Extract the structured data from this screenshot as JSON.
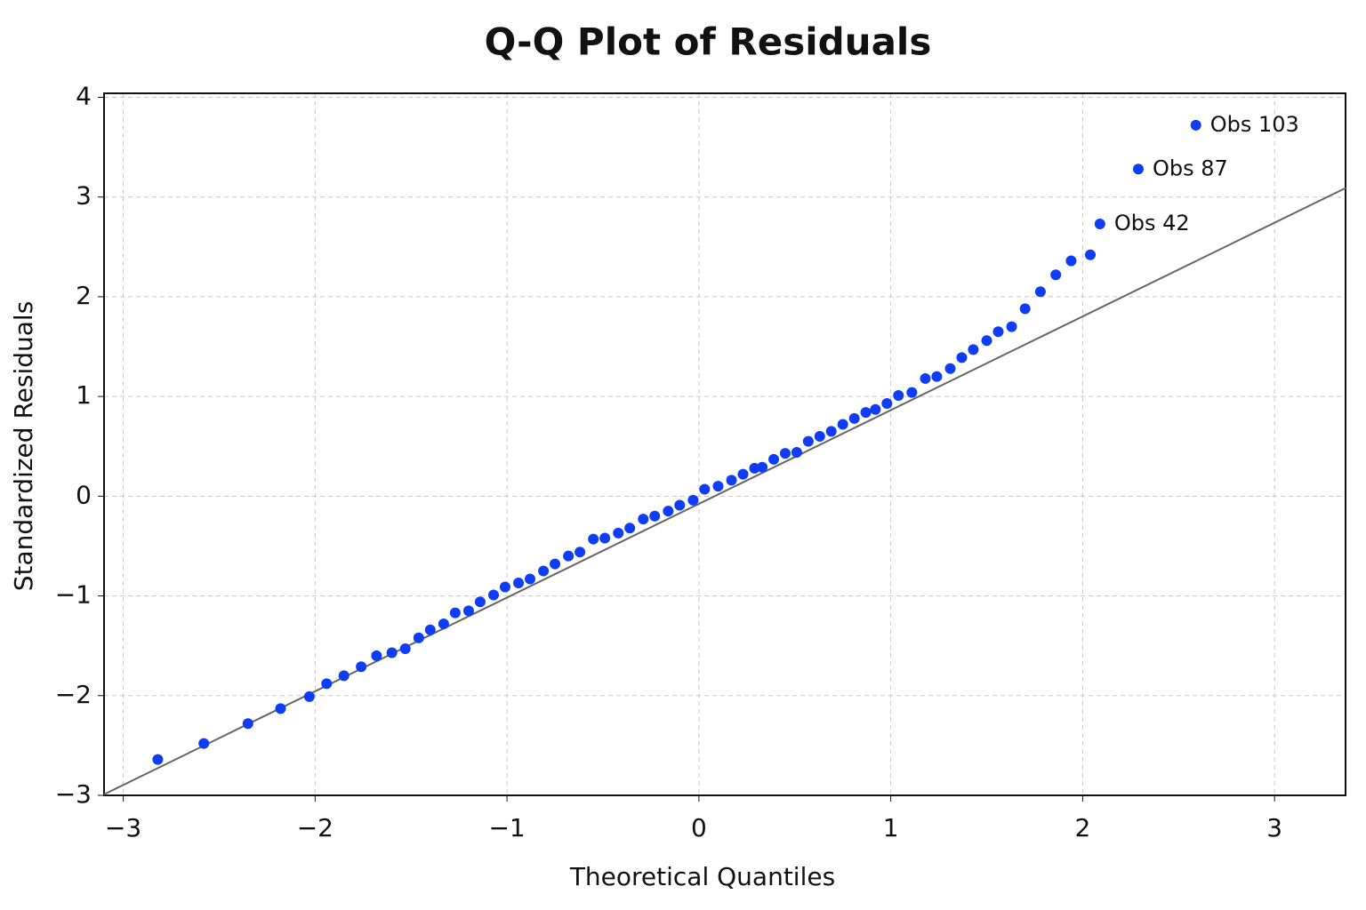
{
  "chart_data": {
    "type": "scatter",
    "title": "Q-Q Plot of Residuals",
    "x_label": "Theoretical Quantiles",
    "y_label": "Standardized Residuals",
    "color": "#0f3cf5",
    "grid": true,
    "xlim": [
      -3.1,
      3.37
    ],
    "ylim": [
      -3,
      4.04
    ],
    "xticks": [
      {
        "value": -3,
        "label": "−3"
      },
      {
        "value": -2,
        "label": "−2"
      },
      {
        "value": -1,
        "label": "−1"
      },
      0,
      1,
      2,
      3
    ],
    "yticks": [
      {
        "value": -3,
        "label": "−3"
      },
      {
        "value": -2,
        "label": "−2"
      },
      {
        "value": -1,
        "label": "−1"
      },
      0,
      1,
      2,
      3,
      4
    ],
    "x": [
      -2.82,
      -2.58,
      -2.35,
      -2.18,
      -2.03,
      -1.94,
      -1.85,
      -1.76,
      -1.68,
      -1.6,
      -1.53,
      -1.46,
      -1.4,
      -1.33,
      -1.27,
      -1.2,
      -1.14,
      -1.07,
      -1.01,
      -0.94,
      -0.88,
      -0.81,
      -0.75,
      -0.68,
      -0.62,
      -0.55,
      -0.49,
      -0.42,
      -0.36,
      -0.29,
      -0.23,
      -0.16,
      -0.1,
      -0.03,
      0.03,
      0.1,
      0.17,
      0.23,
      0.29,
      0.33,
      0.39,
      0.45,
      0.51,
      0.57,
      0.63,
      0.69,
      0.75,
      0.81,
      0.87,
      0.92,
      0.98,
      1.04,
      1.11,
      1.18,
      1.24,
      1.31,
      1.37,
      1.43,
      1.5,
      1.56,
      1.63,
      1.7,
      1.78,
      1.86,
      1.94,
      2.04,
      2.09,
      2.29,
      2.59
    ],
    "values": [
      -2.64,
      -2.48,
      -2.28,
      -2.13,
      -2.01,
      -1.88,
      -1.8,
      -1.71,
      -1.6,
      -1.57,
      -1.53,
      -1.42,
      -1.34,
      -1.28,
      -1.17,
      -1.15,
      -1.06,
      -0.99,
      -0.91,
      -0.87,
      -0.83,
      -0.75,
      -0.68,
      -0.6,
      -0.56,
      -0.43,
      -0.42,
      -0.37,
      -0.32,
      -0.23,
      -0.2,
      -0.15,
      -0.09,
      -0.04,
      0.07,
      0.1,
      0.16,
      0.22,
      0.28,
      0.29,
      0.37,
      0.43,
      0.44,
      0.55,
      0.6,
      0.65,
      0.72,
      0.78,
      0.84,
      0.87,
      0.93,
      1.01,
      1.04,
      1.18,
      1.2,
      1.28,
      1.39,
      1.47,
      1.56,
      1.65,
      1.7,
      1.88,
      2.05,
      2.22,
      2.36,
      2.42,
      2.73,
      3.28,
      3.72
    ],
    "reference_line": {
      "color": "#666666",
      "x": [
        -3.1,
        3.37
      ],
      "y": [
        -2.99,
        3.09
      ]
    },
    "annotations": [
      {
        "text": "Obs 42",
        "index": 66
      },
      {
        "text": "Obs 87",
        "index": 67
      },
      {
        "text": "Obs 103",
        "index": 68
      }
    ]
  }
}
